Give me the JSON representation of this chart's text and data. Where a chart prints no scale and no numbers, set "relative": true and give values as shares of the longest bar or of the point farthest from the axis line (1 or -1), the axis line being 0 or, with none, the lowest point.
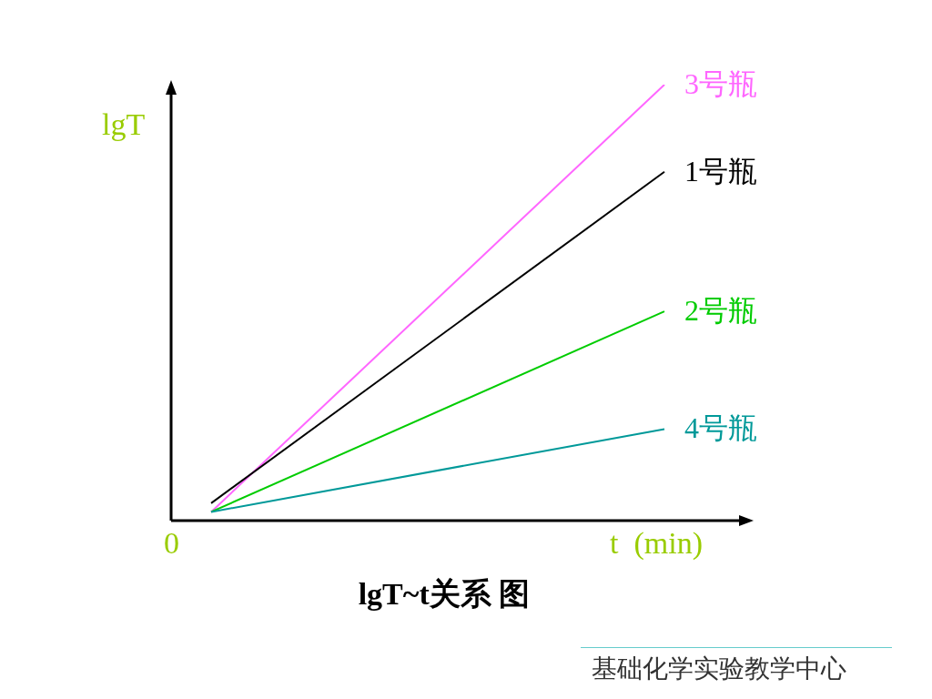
{
  "chart_data": {
    "type": "line",
    "title": "lgT~t关系 图",
    "xlabel": "t  (min)",
    "ylabel": "lgT",
    "relative": true,
    "legend": false,
    "categories": [
      null,
      null
    ],
    "series": [
      {
        "name": "3号瓶",
        "color": "#ff66ff",
        "values": [
          0.02,
          1
        ]
      },
      {
        "name": "1号瓶",
        "color": "#000000",
        "values": [
          0.04,
          0.8
        ]
      },
      {
        "name": "2号瓶",
        "color": "#00cc00",
        "values": [
          0.02,
          0.48
        ]
      },
      {
        "name": "4号瓶",
        "color": "#009999",
        "values": [
          0.02,
          0.21
        ]
      }
    ],
    "annotations": [
      "0",
      "基础化学实验教学中心"
    ]
  }
}
